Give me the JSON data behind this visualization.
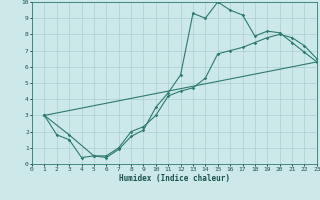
{
  "xlabel": "Humidex (Indice chaleur)",
  "ylabel": "",
  "background_color": "#cce8e8",
  "line_color": "#2d7a6e",
  "grid_color": "#aacfcf",
  "xlim": [
    0,
    23
  ],
  "ylim": [
    0,
    10
  ],
  "xticks": [
    0,
    1,
    2,
    3,
    4,
    5,
    6,
    7,
    8,
    9,
    10,
    11,
    12,
    13,
    14,
    15,
    16,
    17,
    18,
    19,
    20,
    21,
    22,
    23
  ],
  "yticks": [
    0,
    1,
    2,
    3,
    4,
    5,
    6,
    7,
    8,
    9,
    10
  ],
  "line1_x": [
    1,
    2,
    3,
    4,
    5,
    6,
    7,
    8,
    9,
    10,
    11,
    12,
    13,
    14,
    15,
    16,
    17,
    18,
    19,
    20,
    21,
    22,
    23
  ],
  "line1_y": [
    3.0,
    1.8,
    1.5,
    0.4,
    0.5,
    0.4,
    0.9,
    1.7,
    2.1,
    3.5,
    4.4,
    5.5,
    9.3,
    9.0,
    10.0,
    9.5,
    9.2,
    7.9,
    8.2,
    8.1,
    7.5,
    6.9,
    6.3
  ],
  "line2_x": [
    1,
    3,
    5,
    6,
    7,
    8,
    9,
    10,
    11,
    12,
    13,
    14,
    15,
    16,
    17,
    18,
    19,
    20,
    21,
    22,
    23
  ],
  "line2_y": [
    3.0,
    1.8,
    0.5,
    0.5,
    1.0,
    2.0,
    2.3,
    3.0,
    4.2,
    4.5,
    4.7,
    5.3,
    6.8,
    7.0,
    7.2,
    7.5,
    7.8,
    8.0,
    7.8,
    7.3,
    6.5
  ],
  "line3_x": [
    1,
    23
  ],
  "line3_y": [
    3.0,
    6.3
  ]
}
